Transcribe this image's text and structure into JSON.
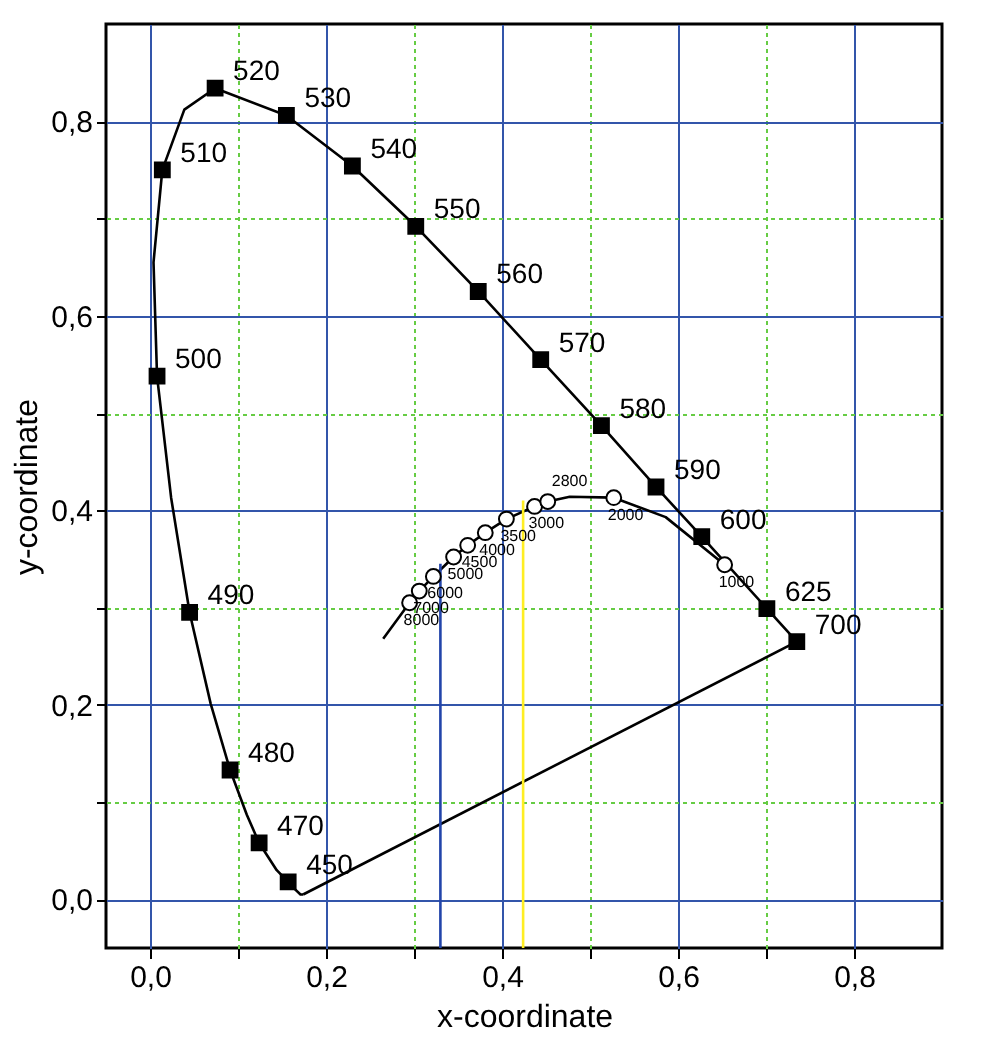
{
  "chart_data": {
    "type": "line",
    "xlabel": "x-coordinate",
    "ylabel": "y-coordinate",
    "xlim": [
      -0.05,
      0.9
    ],
    "ylim": [
      -0.05,
      0.9
    ],
    "xticks": [
      {
        "value": 0,
        "label": "0,0"
      },
      {
        "value": 0.1,
        "label": null
      },
      {
        "value": 0.2,
        "label": "0,2"
      },
      {
        "value": 0.3,
        "label": null
      },
      {
        "value": 0.4,
        "label": "0,4"
      },
      {
        "value": 0.5,
        "label": null
      },
      {
        "value": 0.6,
        "label": "0,6"
      },
      {
        "value": 0.7,
        "label": null
      },
      {
        "value": 0.8,
        "label": "0,8"
      }
    ],
    "yticks": [
      {
        "value": 0,
        "label": "0,0"
      },
      {
        "value": 0.1,
        "label": null
      },
      {
        "value": 0.2,
        "label": "0,2"
      },
      {
        "value": 0.3,
        "label": null
      },
      {
        "value": 0.4,
        "label": "0,4"
      },
      {
        "value": 0.5,
        "label": null
      },
      {
        "value": 0.6,
        "label": "0,6"
      },
      {
        "value": 0.7,
        "label": null
      },
      {
        "value": 0.8,
        "label": "0,8"
      }
    ],
    "grid": true,
    "series": [
      {
        "color": "#000000",
        "x": [
          0.735,
          0.701,
          0.627,
          0.575,
          0.513,
          0.444,
          0.373,
          0.302,
          0.23,
          0.155,
          0.074,
          0.039,
          0.014,
          0.004,
          0.008,
          0.024,
          0.045,
          0.069,
          0.091,
          0.11,
          0.124,
          0.144,
          0.157,
          0.164,
          0.171,
          0.174
        ],
        "values": [
          0.265,
          0.299,
          0.373,
          0.424,
          0.487,
          0.555,
          0.625,
          0.692,
          0.754,
          0.806,
          0.834,
          0.812,
          0.75,
          0.655,
          0.538,
          0.413,
          0.295,
          0.201,
          0.133,
          0.087,
          0.058,
          0.03,
          0.018,
          0.011,
          0.005,
          0.005
        ]
      },
      {
        "color": "#000000",
        "x": [
          0.174,
          0.735
        ],
        "values": [
          0.005,
          0.265
        ]
      },
      {
        "color": "#000000",
        "x": [
          0.265,
          0.295,
          0.306,
          0.322,
          0.345,
          0.361,
          0.381,
          0.405,
          0.437,
          0.452,
          0.477,
          0.527,
          0.586,
          0.653
        ],
        "values": [
          0.268,
          0.305,
          0.317,
          0.332,
          0.352,
          0.364,
          0.377,
          0.391,
          0.404,
          0.409,
          0.414,
          0.413,
          0.393,
          0.344
        ]
      },
      {
        "color": "#2244aa",
        "x": [
          0.33,
          0.33
        ],
        "values": [
          -0.05,
          0.345
        ]
      },
      {
        "color": "#ffee22",
        "x": [
          0.424,
          0.424
        ],
        "values": [
          -0.05,
          0.41
        ]
      },
      {
        "type": "scatter",
        "color": "#000000",
        "marker": "square",
        "x": [
          0.735,
          0.701,
          0.627,
          0.575,
          0.513,
          0.444,
          0.373,
          0.302,
          0.23,
          0.155,
          0.074,
          0.014,
          0.008,
          0.045,
          0.091,
          0.124,
          0.157
        ],
        "values": [
          0.265,
          0.299,
          0.373,
          0.424,
          0.487,
          0.555,
          0.625,
          0.692,
          0.754,
          0.806,
          0.834,
          0.75,
          0.538,
          0.295,
          0.133,
          0.058,
          0.018
        ]
      },
      {
        "type": "scatter",
        "color": "#000000",
        "marker": "circle",
        "x": [
          0.295,
          0.306,
          0.322,
          0.345,
          0.361,
          0.381,
          0.405,
          0.437,
          0.452,
          0.527,
          0.653
        ],
        "values": [
          0.305,
          0.317,
          0.332,
          0.352,
          0.364,
          0.377,
          0.391,
          0.404,
          0.409,
          0.413,
          0.344
        ]
      }
    ],
    "annotations": [
      {
        "text": "700",
        "x": 0.735,
        "y": 0.265
      },
      {
        "text": "625",
        "x": 0.701,
        "y": 0.299
      },
      {
        "text": "600",
        "x": 0.627,
        "y": 0.373
      },
      {
        "text": "590",
        "x": 0.575,
        "y": 0.424
      },
      {
        "text": "580",
        "x": 0.513,
        "y": 0.487
      },
      {
        "text": "570",
        "x": 0.444,
        "y": 0.555
      },
      {
        "text": "560",
        "x": 0.373,
        "y": 0.625
      },
      {
        "text": "550",
        "x": 0.302,
        "y": 0.692
      },
      {
        "text": "540",
        "x": 0.23,
        "y": 0.754
      },
      {
        "text": "530",
        "x": 0.155,
        "y": 0.806
      },
      {
        "text": "520",
        "x": 0.074,
        "y": 0.834
      },
      {
        "text": "510",
        "x": 0.014,
        "y": 0.75
      },
      {
        "text": "500",
        "x": 0.008,
        "y": 0.538
      },
      {
        "text": "490",
        "x": 0.045,
        "y": 0.295
      },
      {
        "text": "480",
        "x": 0.091,
        "y": 0.133
      },
      {
        "text": "470",
        "x": 0.124,
        "y": 0.058
      },
      {
        "text": "450",
        "x": 0.157,
        "y": 0.018
      },
      {
        "text": "8000",
        "x": 0.295,
        "y": 0.305
      },
      {
        "text": "7000",
        "x": 0.306,
        "y": 0.317
      },
      {
        "text": "6000",
        "x": 0.322,
        "y": 0.332
      },
      {
        "text": "5000",
        "x": 0.345,
        "y": 0.352
      },
      {
        "text": "4500",
        "x": 0.361,
        "y": 0.364
      },
      {
        "text": "4000",
        "x": 0.381,
        "y": 0.377
      },
      {
        "text": "3500",
        "x": 0.405,
        "y": 0.391
      },
      {
        "text": "3000",
        "x": 0.437,
        "y": 0.404
      },
      {
        "text": "2800",
        "x": 0.452,
        "y": 0.409
      },
      {
        "text": "2000",
        "x": 0.527,
        "y": 0.413
      },
      {
        "text": "1000",
        "x": 0.653,
        "y": 0.344
      }
    ]
  }
}
